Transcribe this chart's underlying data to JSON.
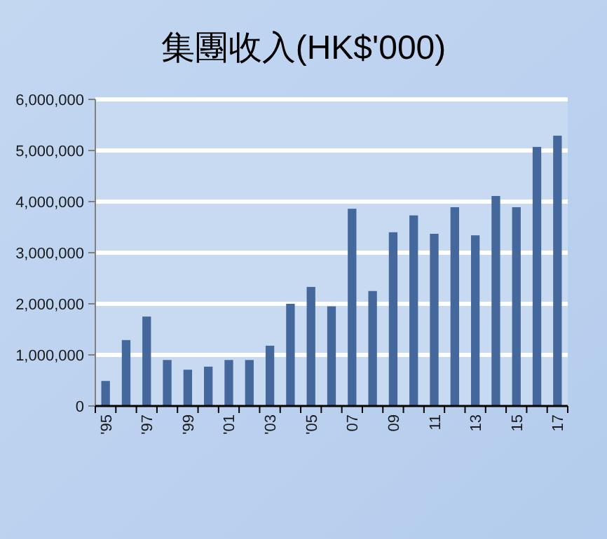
{
  "chart_data": {
    "type": "bar",
    "title": "集團收入(HK$'000)",
    "categories": [
      "'95",
      null,
      "'97",
      null,
      "'99",
      null,
      "'01",
      null,
      "'03",
      null,
      "'05",
      null,
      "07",
      null,
      "09",
      null,
      "11",
      null,
      "13",
      null,
      "15",
      null,
      "17"
    ],
    "values": [
      490000,
      1290000,
      1750000,
      900000,
      710000,
      770000,
      900000,
      900000,
      1180000,
      2000000,
      2330000,
      1950000,
      3860000,
      2250000,
      3400000,
      3730000,
      3370000,
      3890000,
      3340000,
      4110000,
      3890000,
      5070000,
      5290000
    ],
    "color": "#44689b",
    "ylim": [
      0,
      6000000
    ],
    "yticks": [
      {
        "value": 0,
        "label": "0"
      },
      {
        "value": 1000000,
        "label": "1,000,000"
      },
      {
        "value": 2000000,
        "label": "2,000,000"
      },
      {
        "value": 3000000,
        "label": "3,000,000"
      },
      {
        "value": 4000000,
        "label": "4,000,000"
      },
      {
        "value": 5000000,
        "label": "5,000,000"
      },
      {
        "value": 6000000,
        "label": "6,000,000"
      }
    ],
    "grid": "y"
  }
}
